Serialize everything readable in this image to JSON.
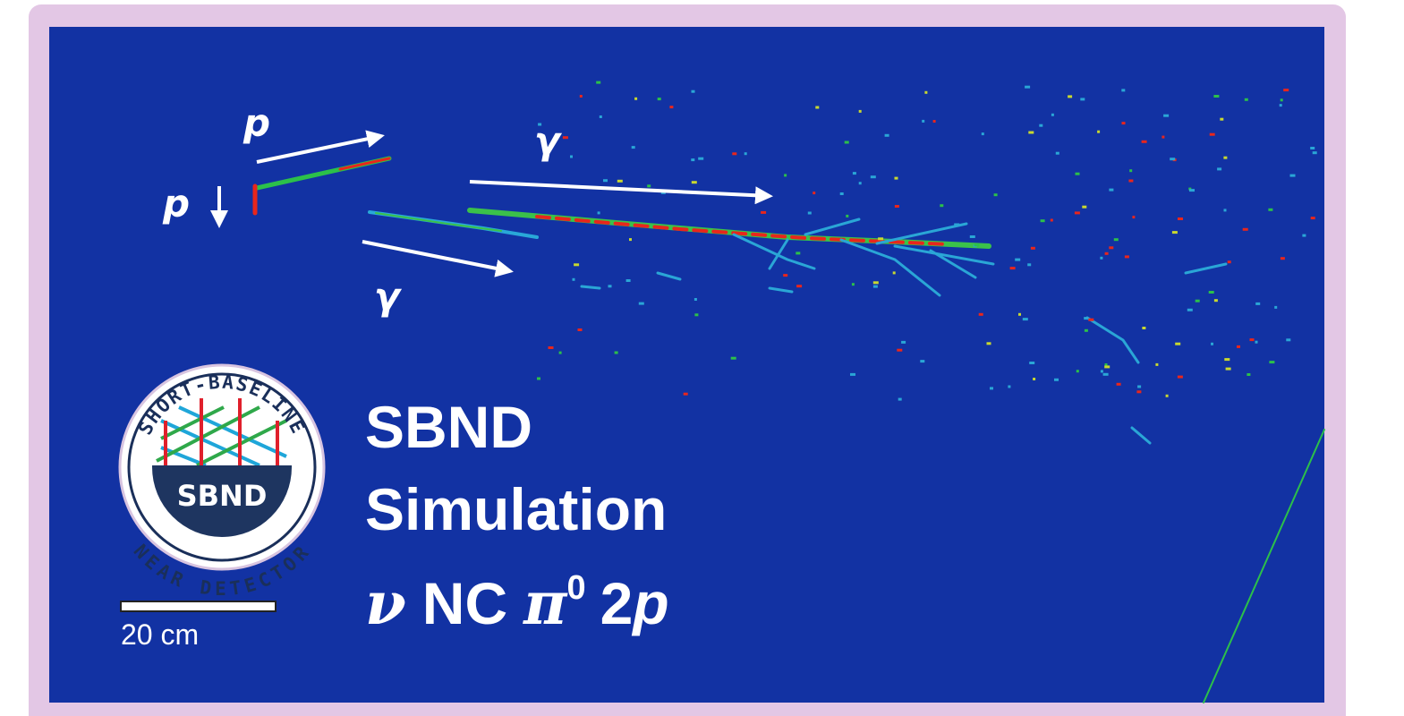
{
  "particle_labels": [
    "p",
    "p",
    "γ",
    "γ"
  ],
  "logo": {
    "top_text": "SHORT-BASELINE",
    "center_text": "SBND",
    "bottom_text": "NEAR DETECTOR"
  },
  "caption": {
    "lines": [
      "SBND",
      "Simulation"
    ],
    "interaction": {
      "neutrino": "ν",
      "current": "NC",
      "pion": "π",
      "charge": "0",
      "count": "2",
      "particle": "p"
    }
  },
  "scale_bar": {
    "label": "20 cm"
  }
}
